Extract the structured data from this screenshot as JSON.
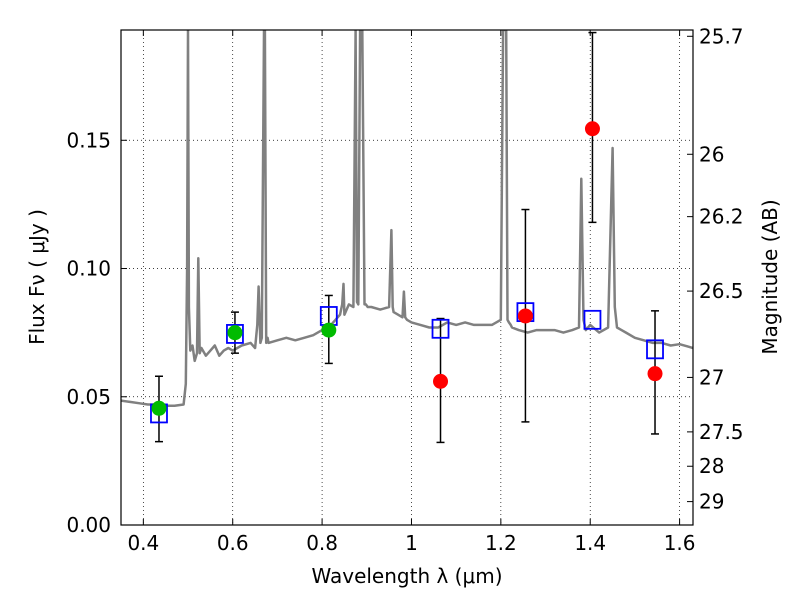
{
  "chart_data": {
    "type": "scatter",
    "xlabel": "Wavelength  λ (μm)",
    "ylabel": "Flux  Fν  ( μJy )",
    "y2label": "Magnitude (AB)",
    "xlim": [
      0.35,
      1.63
    ],
    "ylim": [
      0.0,
      0.193
    ],
    "grid": true,
    "x_ticks": [
      {
        "value": 0.4,
        "label": "0.4"
      },
      {
        "value": 0.6,
        "label": "0.6"
      },
      {
        "value": 0.8,
        "label": "0.8"
      },
      {
        "value": 1.0,
        "label": "1"
      },
      {
        "value": 1.2,
        "label": "1.2"
      },
      {
        "value": 1.4,
        "label": "1.4"
      },
      {
        "value": 1.6,
        "label": "1.6"
      }
    ],
    "y_ticks": [
      {
        "value": 0.0,
        "label": "0.00"
      },
      {
        "value": 0.05,
        "label": "0.05"
      },
      {
        "value": 0.1,
        "label": "0.10"
      },
      {
        "value": 0.15,
        "label": "0.15"
      }
    ],
    "y2_ticks": [
      {
        "value": 25.7,
        "label": "25.7"
      },
      {
        "value": 26.0,
        "label": "26"
      },
      {
        "value": 26.2,
        "label": "26.2"
      },
      {
        "value": 26.5,
        "label": "26.5"
      },
      {
        "value": 27.0,
        "label": "27"
      },
      {
        "value": 27.5,
        "label": "27.5"
      },
      {
        "value": 28.0,
        "label": "28"
      },
      {
        "value": 29.0,
        "label": "29"
      }
    ],
    "series": [
      {
        "kind": "model_spectrum",
        "color": "#808080",
        "x": [
          0.35,
          0.37,
          0.39,
          0.41,
          0.43,
          0.45,
          0.47,
          0.49,
          0.495,
          0.498,
          0.5,
          0.502,
          0.505,
          0.51,
          0.515,
          0.52,
          0.523,
          0.526,
          0.53,
          0.54,
          0.55,
          0.56,
          0.57,
          0.58,
          0.59,
          0.6,
          0.62,
          0.64,
          0.65,
          0.655,
          0.658,
          0.662,
          0.665,
          0.67,
          0.672,
          0.675,
          0.678,
          0.68,
          0.7,
          0.72,
          0.74,
          0.76,
          0.78,
          0.8,
          0.82,
          0.84,
          0.845,
          0.848,
          0.85,
          0.86,
          0.87,
          0.875,
          0.878,
          0.881,
          0.885,
          0.89,
          0.895,
          0.898,
          0.902,
          0.905,
          0.91,
          0.93,
          0.95,
          0.955,
          0.958,
          0.96,
          0.97,
          0.98,
          0.983,
          0.986,
          0.99,
          1.0,
          1.02,
          1.04,
          1.06,
          1.08,
          1.1,
          1.12,
          1.14,
          1.16,
          1.18,
          1.2,
          1.205,
          1.208,
          1.212,
          1.215,
          1.218,
          1.222,
          1.225,
          1.24,
          1.26,
          1.28,
          1.3,
          1.32,
          1.34,
          1.36,
          1.375,
          1.38,
          1.385,
          1.39,
          1.4,
          1.42,
          1.44,
          1.45,
          1.455,
          1.46,
          1.47,
          1.48,
          1.5,
          1.52,
          1.54,
          1.56,
          1.58,
          1.6,
          1.62,
          1.63
        ],
        "y": [
          0.0485,
          0.048,
          0.0475,
          0.047,
          0.047,
          0.0465,
          0.0465,
          0.047,
          0.055,
          0.1,
          0.193,
          0.085,
          0.068,
          0.07,
          0.064,
          0.067,
          0.104,
          0.067,
          0.069,
          0.066,
          0.068,
          0.07,
          0.066,
          0.068,
          0.069,
          0.068,
          0.07,
          0.071,
          0.069,
          0.078,
          0.093,
          0.071,
          0.073,
          0.193,
          0.193,
          0.071,
          0.073,
          0.071,
          0.072,
          0.073,
          0.072,
          0.073,
          0.074,
          0.076,
          0.078,
          0.082,
          0.086,
          0.094,
          0.082,
          0.086,
          0.085,
          0.193,
          0.087,
          0.086,
          0.193,
          0.193,
          0.086,
          0.086,
          0.085,
          0.085,
          0.085,
          0.084,
          0.085,
          0.115,
          0.085,
          0.083,
          0.082,
          0.081,
          0.091,
          0.081,
          0.08,
          0.079,
          0.078,
          0.077,
          0.077,
          0.079,
          0.078,
          0.079,
          0.078,
          0.078,
          0.078,
          0.08,
          0.193,
          0.193,
          0.193,
          0.08,
          0.079,
          0.078,
          0.077,
          0.076,
          0.075,
          0.076,
          0.076,
          0.076,
          0.075,
          0.076,
          0.077,
          0.135,
          0.08,
          0.076,
          0.078,
          0.075,
          0.077,
          0.147,
          0.085,
          0.077,
          0.076,
          0.075,
          0.073,
          0.072,
          0.071,
          0.071,
          0.07,
          0.0705,
          0.0695,
          0.069
        ]
      },
      {
        "kind": "model_photometry",
        "marker": "open-square",
        "color": "#0000ff",
        "x": [
          0.435,
          0.605,
          0.815,
          1.065,
          1.255,
          1.405,
          1.545
        ],
        "y": [
          0.0435,
          0.0745,
          0.0815,
          0.0765,
          0.083,
          0.08,
          0.0685
        ]
      },
      {
        "kind": "detections",
        "marker": "filled-circle",
        "color": "#00bb00",
        "x": [
          0.435,
          0.605,
          0.815
        ],
        "y": [
          0.0455,
          0.075,
          0.076
        ],
        "err_low": [
          0.013,
          0.008,
          0.013
        ],
        "err_high": [
          0.0125,
          0.008,
          0.0135
        ]
      },
      {
        "kind": "upper_limits",
        "marker": "filled-circle",
        "color": "#ff0000",
        "x": [
          1.065,
          1.255,
          1.405,
          1.545
        ],
        "y": [
          0.056,
          0.0815,
          0.1545,
          0.059
        ],
        "err_low": [
          0.0238,
          0.0413,
          0.0365,
          0.0235
        ],
        "err_high": [
          0.0245,
          0.0415,
          0.0375,
          0.0245
        ]
      }
    ]
  }
}
